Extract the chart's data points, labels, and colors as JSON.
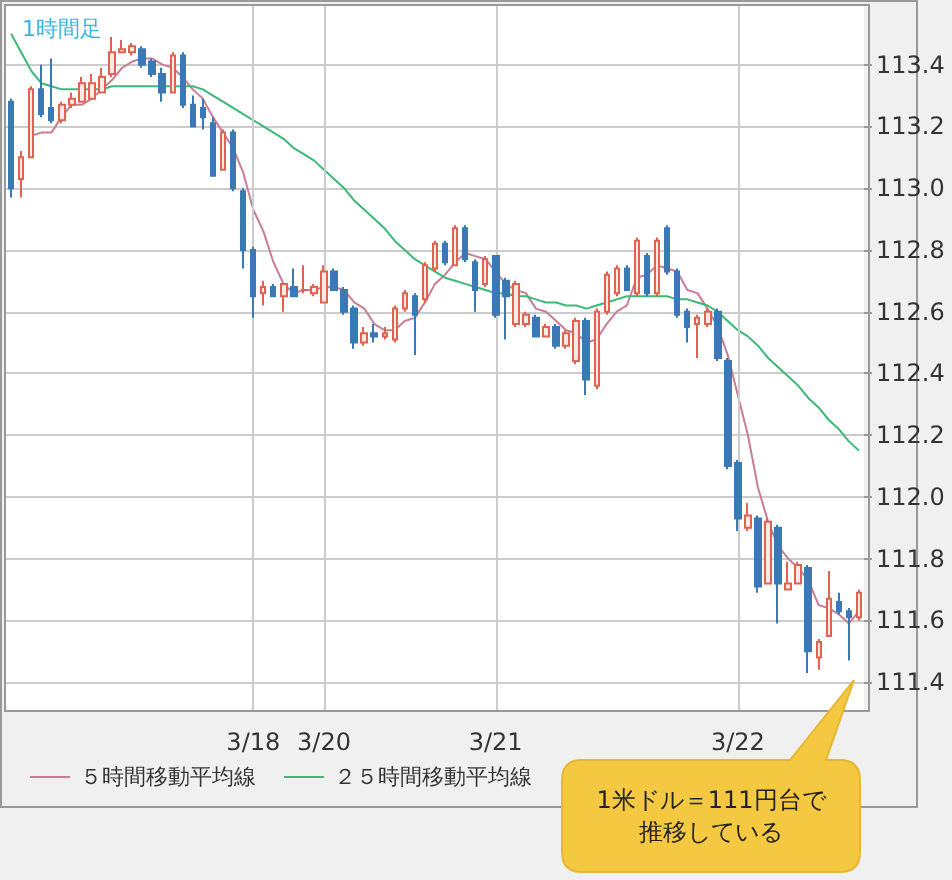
{
  "chart_data": {
    "type": "candlestick",
    "title": "1時間足",
    "categories": [
      null,
      null,
      null,
      null,
      null,
      null,
      null,
      null,
      null,
      null,
      null,
      null,
      null,
      null,
      null,
      null,
      null,
      null,
      null,
      null,
      null,
      null,
      null,
      null,
      "3/18",
      null,
      null,
      null,
      null,
      null,
      null,
      "3/20",
      null,
      null,
      null,
      null,
      null,
      null,
      null,
      null,
      null,
      null,
      null,
      null,
      null,
      null,
      null,
      null,
      "3/21",
      null,
      null,
      null,
      null,
      null,
      null,
      null,
      null,
      null,
      null,
      null,
      null,
      null,
      null,
      null,
      null,
      null,
      null,
      null,
      null,
      null,
      null,
      null,
      "3/22",
      null,
      null,
      null,
      null,
      null,
      null,
      null,
      null,
      null,
      null,
      null,
      null
    ],
    "ohlc": [
      [
        113.28,
        113.29,
        112.97,
        113.0
      ],
      [
        113.03,
        113.12,
        112.97,
        113.1
      ],
      [
        113.1,
        113.33,
        113.1,
        113.32
      ],
      [
        113.32,
        113.4,
        113.23,
        113.24
      ],
      [
        113.26,
        113.42,
        113.21,
        113.22
      ],
      [
        113.22,
        113.28,
        113.21,
        113.27
      ],
      [
        113.27,
        113.31,
        113.26,
        113.29
      ],
      [
        113.28,
        113.36,
        113.28,
        113.34
      ],
      [
        113.29,
        113.37,
        113.29,
        113.34
      ],
      [
        113.31,
        113.39,
        113.31,
        113.36
      ],
      [
        113.37,
        113.49,
        113.36,
        113.44
      ],
      [
        113.44,
        113.48,
        113.44,
        113.45
      ],
      [
        113.44,
        113.47,
        113.43,
        113.46
      ],
      [
        113.45,
        113.46,
        113.39,
        113.4
      ],
      [
        113.41,
        113.42,
        113.36,
        113.37
      ],
      [
        113.37,
        113.39,
        113.28,
        113.31
      ],
      [
        113.31,
        113.44,
        113.31,
        113.43
      ],
      [
        113.43,
        113.44,
        113.26,
        113.27
      ],
      [
        113.27,
        113.3,
        113.2,
        113.2
      ],
      [
        113.26,
        113.29,
        113.19,
        113.23
      ],
      [
        113.21,
        113.23,
        113.04,
        113.04
      ],
      [
        113.06,
        113.19,
        113.06,
        113.18
      ],
      [
        113.18,
        113.19,
        112.99,
        113.0
      ],
      [
        112.99,
        113.0,
        112.74,
        112.8
      ],
      [
        112.8,
        112.81,
        112.58,
        112.65
      ],
      [
        112.66,
        112.7,
        112.62,
        112.68
      ],
      [
        112.68,
        112.69,
        112.65,
        112.65
      ],
      [
        112.65,
        112.69,
        112.6,
        112.69
      ],
      [
        112.68,
        112.74,
        112.65,
        112.65
      ],
      [
        112.67,
        112.75,
        112.66,
        112.67
      ],
      [
        112.66,
        112.69,
        112.65,
        112.68
      ],
      [
        112.63,
        112.75,
        112.63,
        112.73
      ],
      [
        112.73,
        112.74,
        112.67,
        112.67
      ],
      [
        112.67,
        112.68,
        112.59,
        112.6
      ],
      [
        112.61,
        112.62,
        112.48,
        112.5
      ],
      [
        112.5,
        112.55,
        112.49,
        112.53
      ],
      [
        112.53,
        112.56,
        112.5,
        112.52
      ],
      [
        112.52,
        112.55,
        112.51,
        112.53
      ],
      [
        112.51,
        112.62,
        112.5,
        112.61
      ],
      [
        112.61,
        112.67,
        112.6,
        112.66
      ],
      [
        112.65,
        112.66,
        112.46,
        112.59
      ],
      [
        112.64,
        112.76,
        112.63,
        112.75
      ],
      [
        112.74,
        112.83,
        112.73,
        112.82
      ],
      [
        112.82,
        112.83,
        112.75,
        112.76
      ],
      [
        112.75,
        112.88,
        112.75,
        112.87
      ],
      [
        112.87,
        112.88,
        112.76,
        112.77
      ],
      [
        112.76,
        112.77,
        112.6,
        112.67
      ],
      [
        112.69,
        112.78,
        112.68,
        112.77
      ],
      [
        112.78,
        112.78,
        112.58,
        112.59
      ],
      [
        112.7,
        112.71,
        112.51,
        112.65
      ],
      [
        112.56,
        112.7,
        112.55,
        112.69
      ],
      [
        112.56,
        112.6,
        112.55,
        112.59
      ],
      [
        112.58,
        112.59,
        112.52,
        112.52
      ],
      [
        112.52,
        112.56,
        112.52,
        112.55
      ],
      [
        112.55,
        112.56,
        112.48,
        112.49
      ],
      [
        112.49,
        112.54,
        112.48,
        112.53
      ],
      [
        112.44,
        112.58,
        112.43,
        112.57
      ],
      [
        112.57,
        112.58,
        112.33,
        112.38
      ],
      [
        112.36,
        112.61,
        112.35,
        112.6
      ],
      [
        112.6,
        112.73,
        112.59,
        112.72
      ],
      [
        112.66,
        112.75,
        112.65,
        112.74
      ],
      [
        112.74,
        112.75,
        112.67,
        112.67
      ],
      [
        112.66,
        112.84,
        112.65,
        112.83
      ],
      [
        112.78,
        112.79,
        112.65,
        112.66
      ],
      [
        112.66,
        112.84,
        112.65,
        112.83
      ],
      [
        112.87,
        112.88,
        112.72,
        112.73
      ],
      [
        112.73,
        112.74,
        112.58,
        112.59
      ],
      [
        112.6,
        112.61,
        112.5,
        112.55
      ],
      [
        112.56,
        112.59,
        112.45,
        112.58
      ],
      [
        112.56,
        112.61,
        112.55,
        112.6
      ],
      [
        112.6,
        112.61,
        112.44,
        112.45
      ],
      [
        112.44,
        112.45,
        112.09,
        112.1
      ],
      [
        112.11,
        112.12,
        111.89,
        111.93
      ],
      [
        111.9,
        111.98,
        111.89,
        111.94
      ],
      [
        111.93,
        111.94,
        111.69,
        111.71
      ],
      [
        111.72,
        111.93,
        111.72,
        111.92
      ],
      [
        111.9,
        111.91,
        111.59,
        111.72
      ],
      [
        111.7,
        111.79,
        111.7,
        111.72
      ],
      [
        111.72,
        111.79,
        111.72,
        111.78
      ],
      [
        111.77,
        111.78,
        111.43,
        111.5
      ],
      [
        111.48,
        111.54,
        111.44,
        111.53
      ],
      [
        111.55,
        111.76,
        111.55,
        111.67
      ],
      [
        111.66,
        111.69,
        111.62,
        111.63
      ],
      [
        111.63,
        111.64,
        111.47,
        111.61
      ],
      [
        111.61,
        111.7,
        111.6,
        111.69
      ]
    ],
    "series": [
      {
        "type": "line",
        "name": "５時間移動平均線",
        "color": "#c97d94",
        "values": [
          null,
          null,
          113.17,
          113.18,
          113.18,
          113.23,
          113.27,
          113.27,
          113.29,
          113.32,
          113.35,
          113.39,
          113.41,
          113.42,
          113.42,
          113.4,
          113.39,
          113.36,
          113.32,
          113.29,
          113.23,
          113.18,
          113.13,
          113.05,
          112.93,
          112.86,
          112.76,
          112.69,
          112.66,
          112.67,
          112.67,
          112.68,
          112.68,
          112.67,
          112.63,
          112.61,
          112.56,
          112.54,
          112.54,
          112.57,
          112.58,
          112.63,
          112.69,
          112.72,
          112.76,
          112.79,
          112.78,
          112.77,
          112.73,
          112.69,
          112.67,
          112.66,
          112.61,
          112.6,
          112.57,
          112.54,
          112.53,
          112.5,
          112.51,
          112.56,
          112.6,
          112.62,
          112.71,
          112.72,
          112.75,
          112.74,
          112.73,
          112.67,
          112.66,
          112.61,
          112.55,
          112.46,
          112.33,
          112.2,
          112.03,
          111.92,
          111.84,
          111.8,
          111.77,
          111.73,
          111.65,
          111.64,
          111.62,
          111.59,
          111.63
        ]
      },
      {
        "type": "line",
        "name": "２５時間移動平均線",
        "color": "#3cb878",
        "values": [
          113.5,
          113.44,
          113.38,
          113.34,
          113.33,
          113.32,
          113.32,
          113.32,
          113.32,
          113.32,
          113.33,
          113.33,
          113.33,
          113.33,
          113.33,
          113.33,
          113.33,
          113.33,
          113.33,
          113.32,
          113.3,
          113.28,
          113.26,
          113.24,
          113.22,
          113.2,
          113.18,
          113.16,
          113.13,
          113.11,
          113.09,
          113.06,
          113.03,
          113.0,
          112.96,
          112.93,
          112.9,
          112.87,
          112.83,
          112.8,
          112.77,
          112.75,
          112.73,
          112.71,
          112.7,
          112.69,
          112.68,
          112.67,
          112.66,
          112.66,
          112.65,
          112.65,
          112.64,
          112.63,
          112.63,
          112.62,
          112.62,
          112.61,
          112.62,
          112.63,
          112.64,
          112.65,
          112.65,
          112.65,
          112.65,
          112.65,
          112.64,
          112.64,
          112.63,
          112.62,
          112.6,
          112.57,
          112.54,
          112.52,
          112.49,
          112.45,
          112.42,
          112.39,
          112.36,
          112.32,
          112.29,
          112.25,
          112.22,
          112.18,
          112.15
        ]
      }
    ],
    "ylim": [
      111.31,
      113.59
    ],
    "yticks": [
      111.4,
      111.6,
      111.8,
      {
        "value": 112.0,
        "label": "112.0"
      },
      112.2,
      112.4,
      112.6,
      112.8,
      {
        "value": 113.0,
        "label": "113.0"
      },
      113.2,
      113.4
    ],
    "grid": true,
    "legend": "bottom left",
    "annotations": [
      "1米ドル＝111円台で推移している"
    ]
  }
}
